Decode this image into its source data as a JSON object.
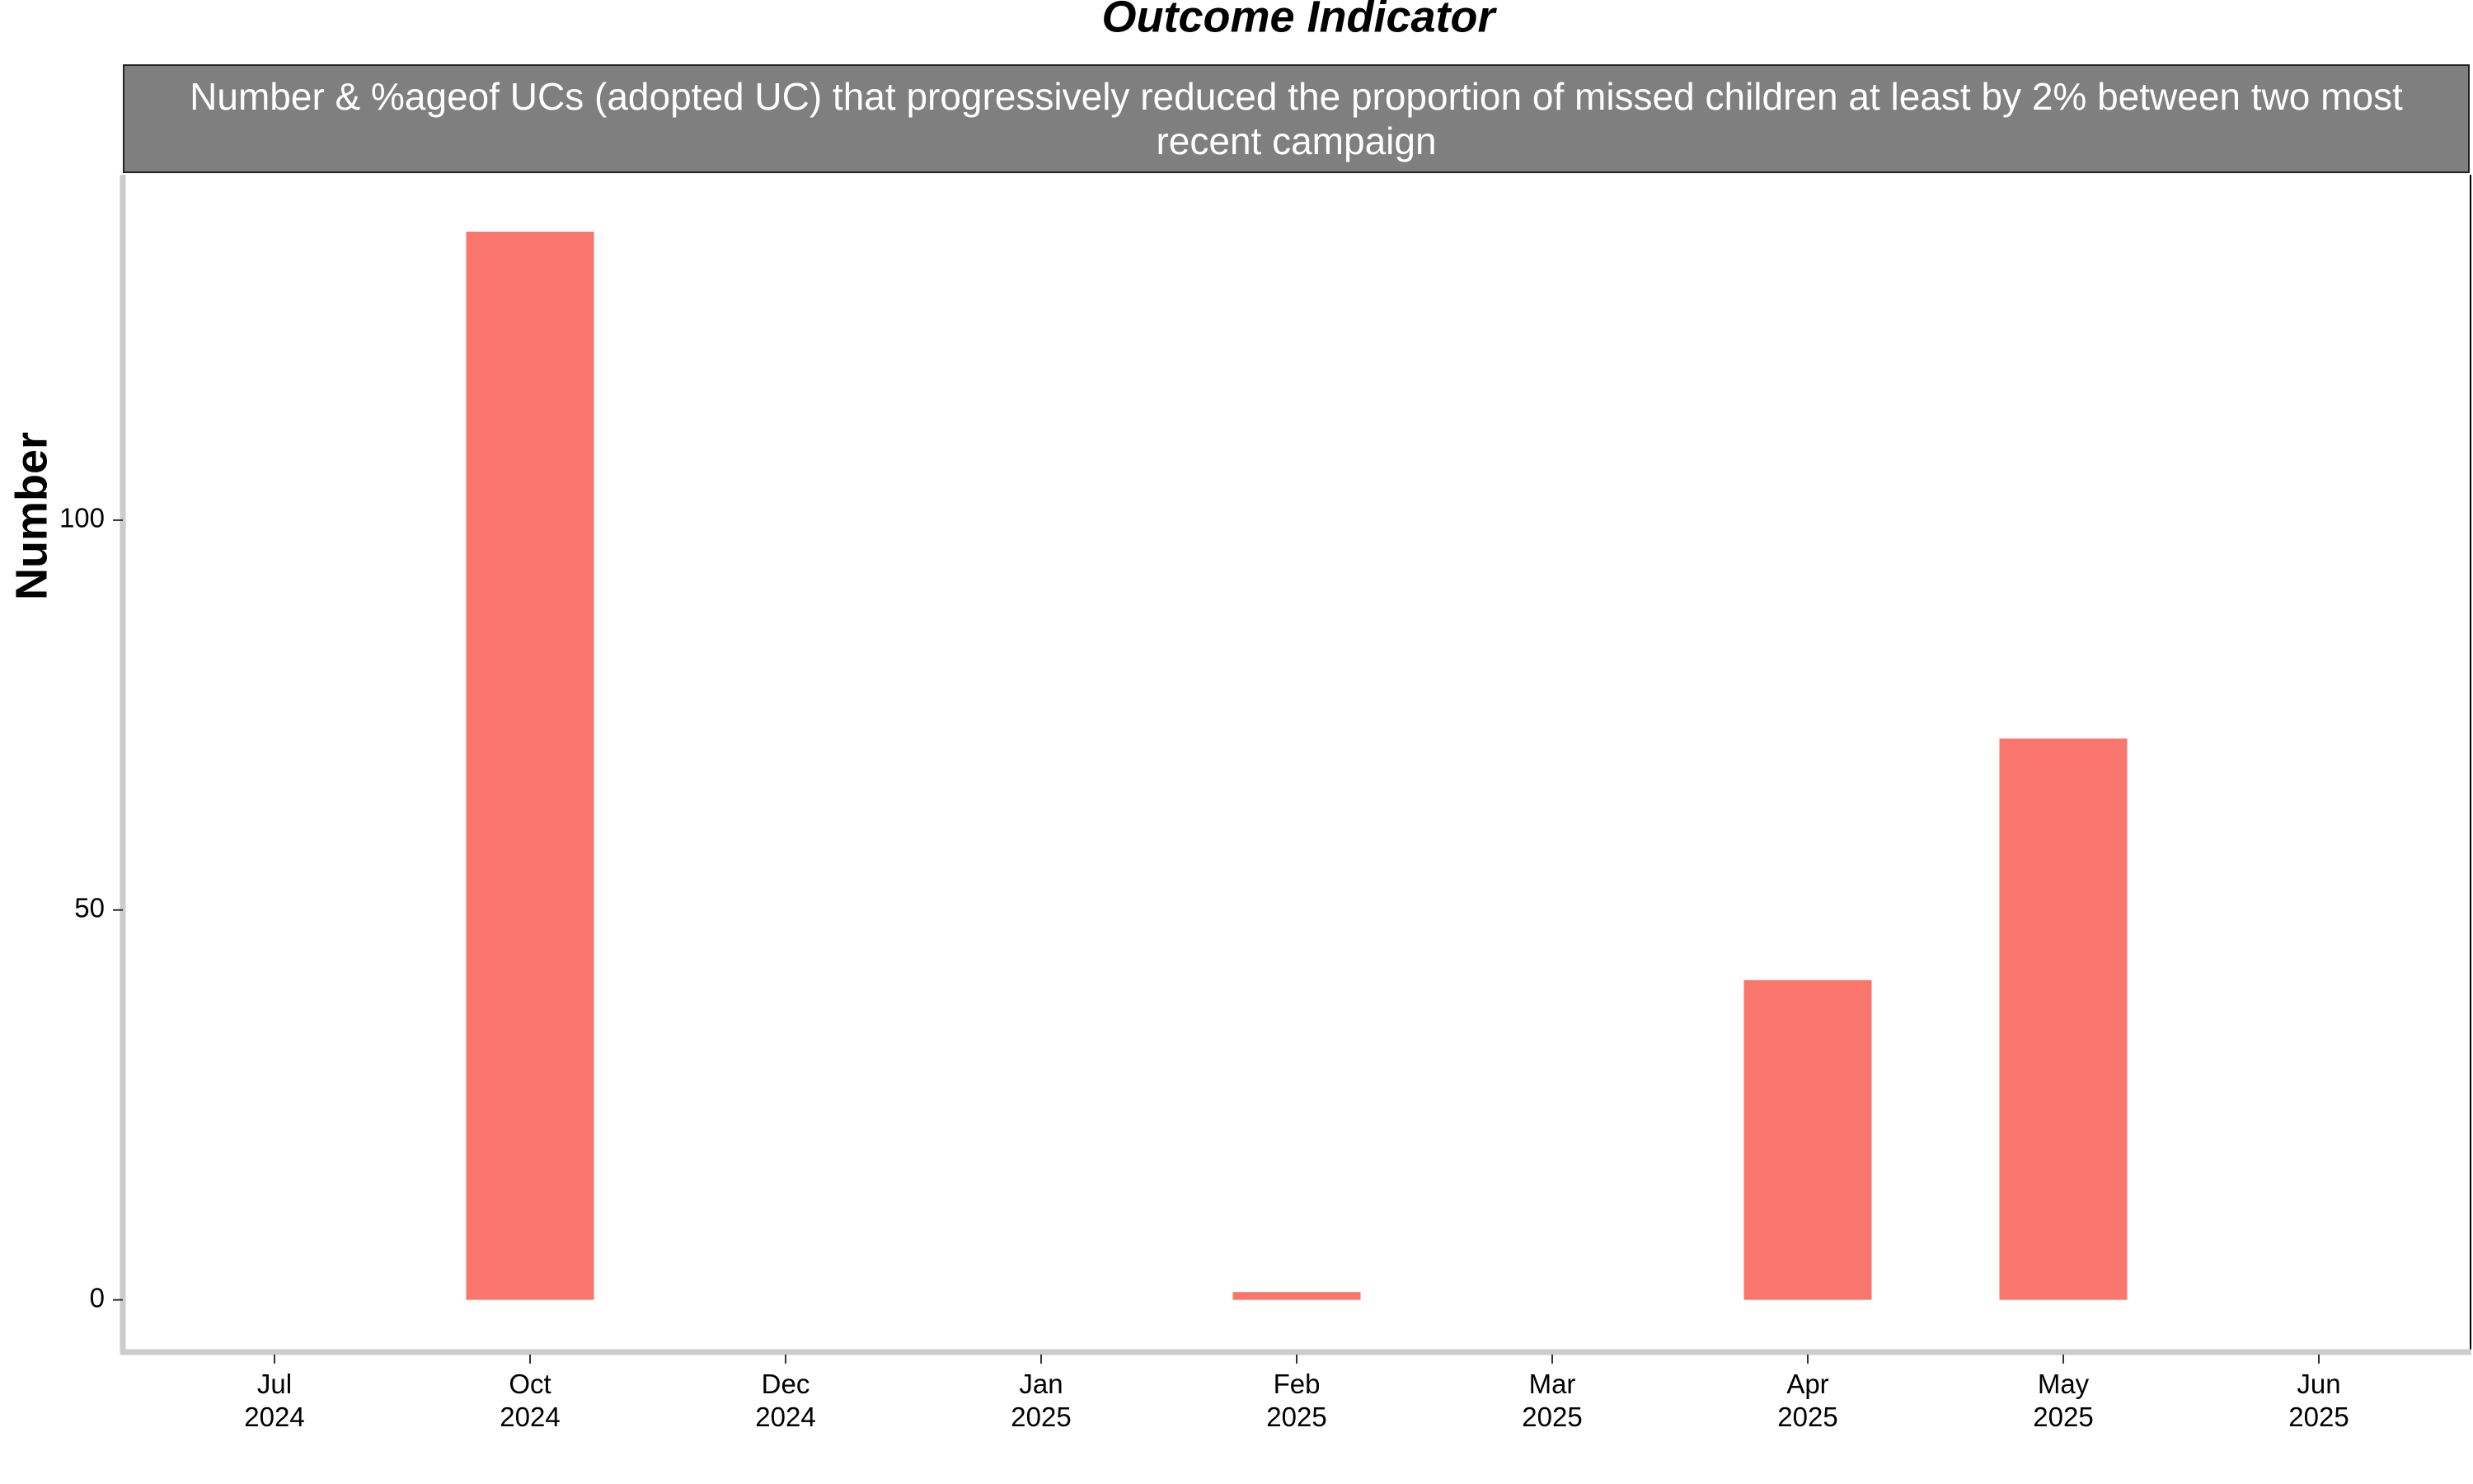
{
  "chart_data": {
    "type": "bar",
    "title": "Outcome Indicator",
    "subtitle": "Number & %ageof UCs (adopted UC) that progressively reduced the proportion of missed children at least by 2% between two most recent campaign",
    "y_label": "Number",
    "categories": [
      "Jul 2024",
      "Oct 2024",
      "Dec 2024",
      "Jan 2025",
      "Feb 2025",
      "Mar 2025",
      "Apr 2025",
      "May 2025",
      "Jun 2025"
    ],
    "values": [
      null,
      137,
      null,
      null,
      1,
      null,
      41,
      72,
      null
    ],
    "color": "#f8766d",
    "ylim": [
      -6.7,
      144.3
    ],
    "yticks": [
      0,
      50,
      100
    ],
    "grid": false
  }
}
